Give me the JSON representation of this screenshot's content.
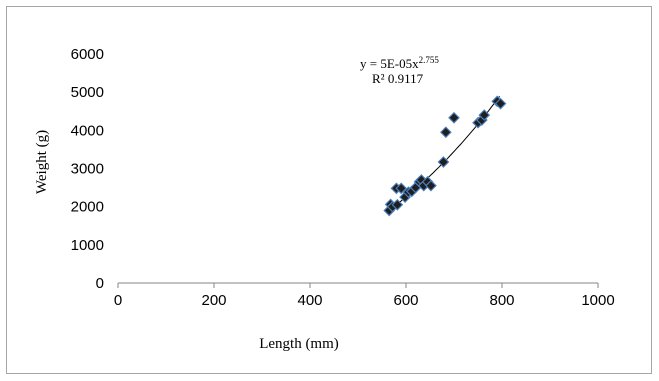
{
  "chart_data": {
    "type": "scatter",
    "xlabel": "Length (mm)",
    "ylabel": "Weight (g)",
    "xlim": [
      0,
      1000
    ],
    "ylim": [
      0,
      6000
    ],
    "x_ticks": [
      0,
      200,
      400,
      600,
      800,
      1000
    ],
    "y_ticks": [
      0,
      1000,
      2000,
      3000,
      4000,
      5000,
      6000
    ],
    "x_tick_labels": [
      "0",
      "200",
      "400",
      "600",
      "800",
      "1000"
    ],
    "y_tick_labels": [
      "0",
      "1000",
      "2000",
      "3000",
      "4000",
      "5000",
      "6000"
    ],
    "grid": false,
    "legend": "none",
    "marker": "diamond",
    "marker_color": "#1f1f1f",
    "marker_edge_color": "#4a7ebb",
    "series": [
      {
        "x": [
          565,
          568,
          572,
          580,
          582,
          590,
          598,
          605,
          612,
          620,
          628,
          632,
          637,
          645,
          652,
          678,
          683,
          700,
          750,
          758,
          763,
          790,
          797
        ],
        "y": [
          1900,
          2060,
          2000,
          2480,
          2050,
          2480,
          2250,
          2380,
          2400,
          2500,
          2650,
          2700,
          2550,
          2650,
          2550,
          3170,
          3950,
          4330,
          4200,
          4270,
          4400,
          4760,
          4700
        ]
      }
    ],
    "trendline": {
      "type": "power",
      "coefficient": 5e-05,
      "exponent": 2.755,
      "x_range": [
        565,
        795
      ],
      "equation_text": "y = 5E-05x",
      "equation_exponent_text": "2.755",
      "r2_text": "R²   0.9117"
    }
  }
}
